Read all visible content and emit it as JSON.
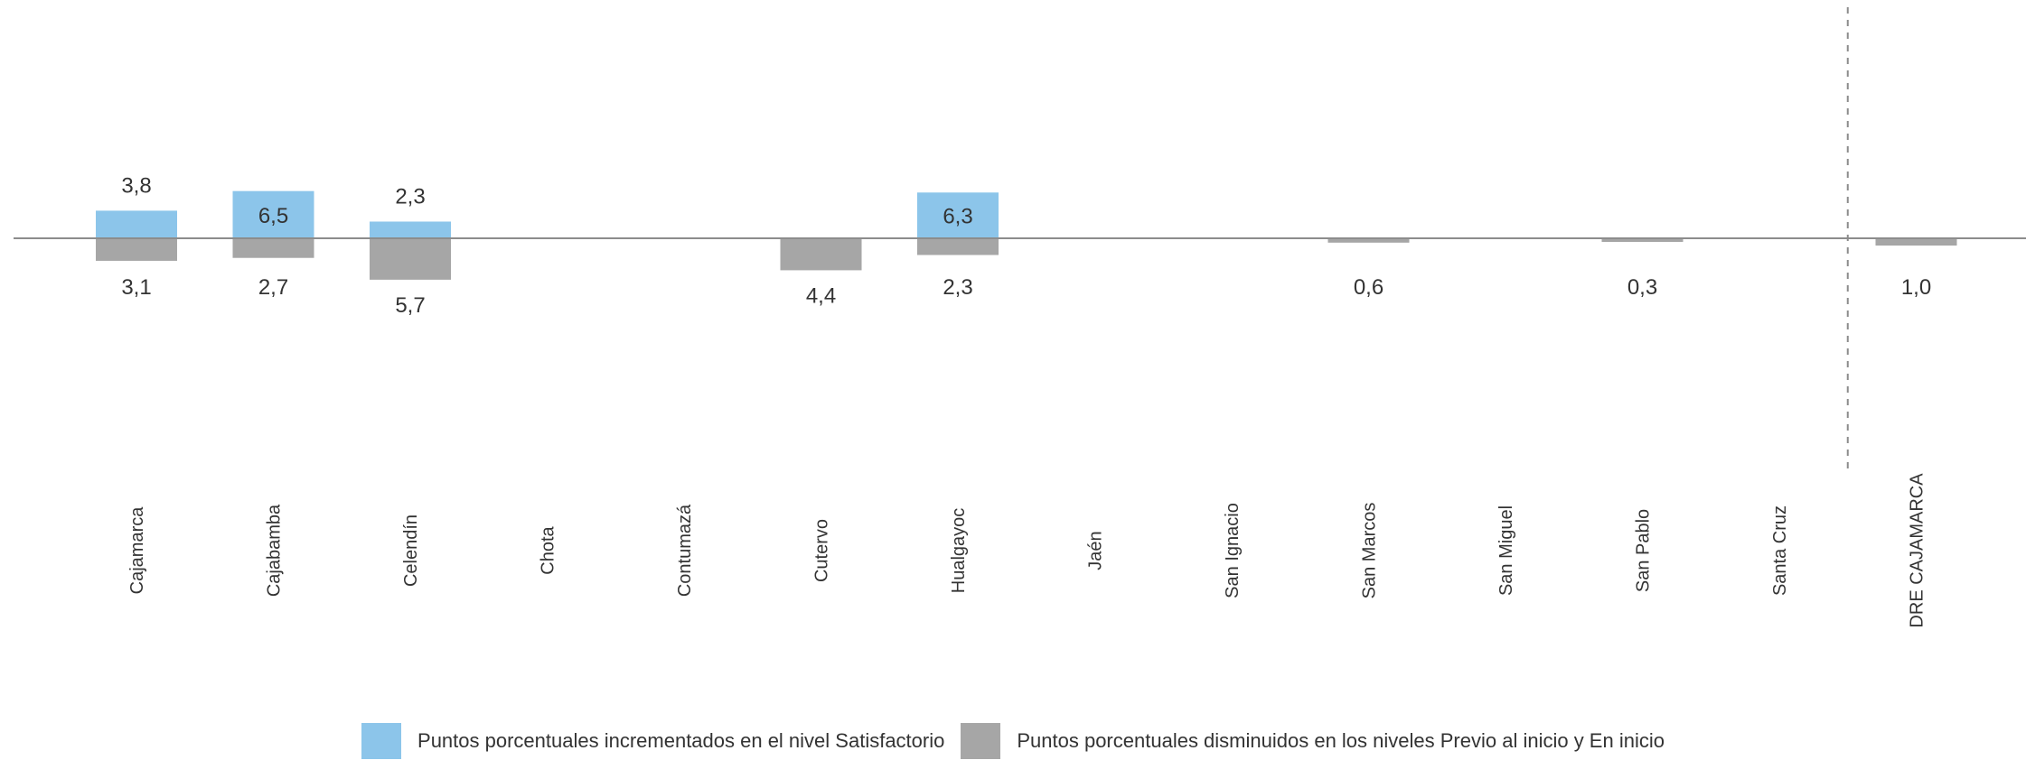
{
  "colors": {
    "increase": "#8cc5ea",
    "decrease": "#a6a6a6",
    "axis": "#8c8c8c",
    "text": "#333333"
  },
  "chart_data": {
    "type": "bar",
    "categories": [
      "Cajamarca",
      "Cajabamba",
      "Celendín",
      "Chota",
      "Contumazá",
      "Cutervo",
      "Hualgayoc",
      "Jaén",
      "San Ignacio",
      "San Marcos",
      "San Miguel",
      "San Pablo",
      "Santa Cruz",
      "DRE CAJAMARCA"
    ],
    "series": [
      {
        "name": "Puntos porcentuales incrementados en el nivel Satisfactorio",
        "values": [
          3.8,
          6.5,
          2.3,
          null,
          null,
          null,
          6.3,
          null,
          null,
          null,
          null,
          null,
          null,
          null
        ],
        "labels": [
          "3,8",
          "6,5",
          "2,3",
          "",
          "",
          "",
          "6,3",
          "",
          "",
          "",
          "",
          "",
          "",
          ""
        ]
      },
      {
        "name": "Puntos porcentuales disminuidos en los niveles Previo al inicio y En inicio",
        "values": [
          3.1,
          2.7,
          5.7,
          null,
          null,
          4.4,
          2.3,
          null,
          null,
          0.6,
          null,
          0.3,
          null,
          1.0
        ],
        "labels": [
          "3,1",
          "2,7",
          "5,7",
          "",
          "",
          "4,4",
          "2,3",
          "",
          "",
          "0,6",
          "",
          "0,3",
          "",
          "1,0"
        ]
      }
    ],
    "separator_before": "DRE CAJAMARCA",
    "legend_position": "bottom",
    "grid": false
  }
}
